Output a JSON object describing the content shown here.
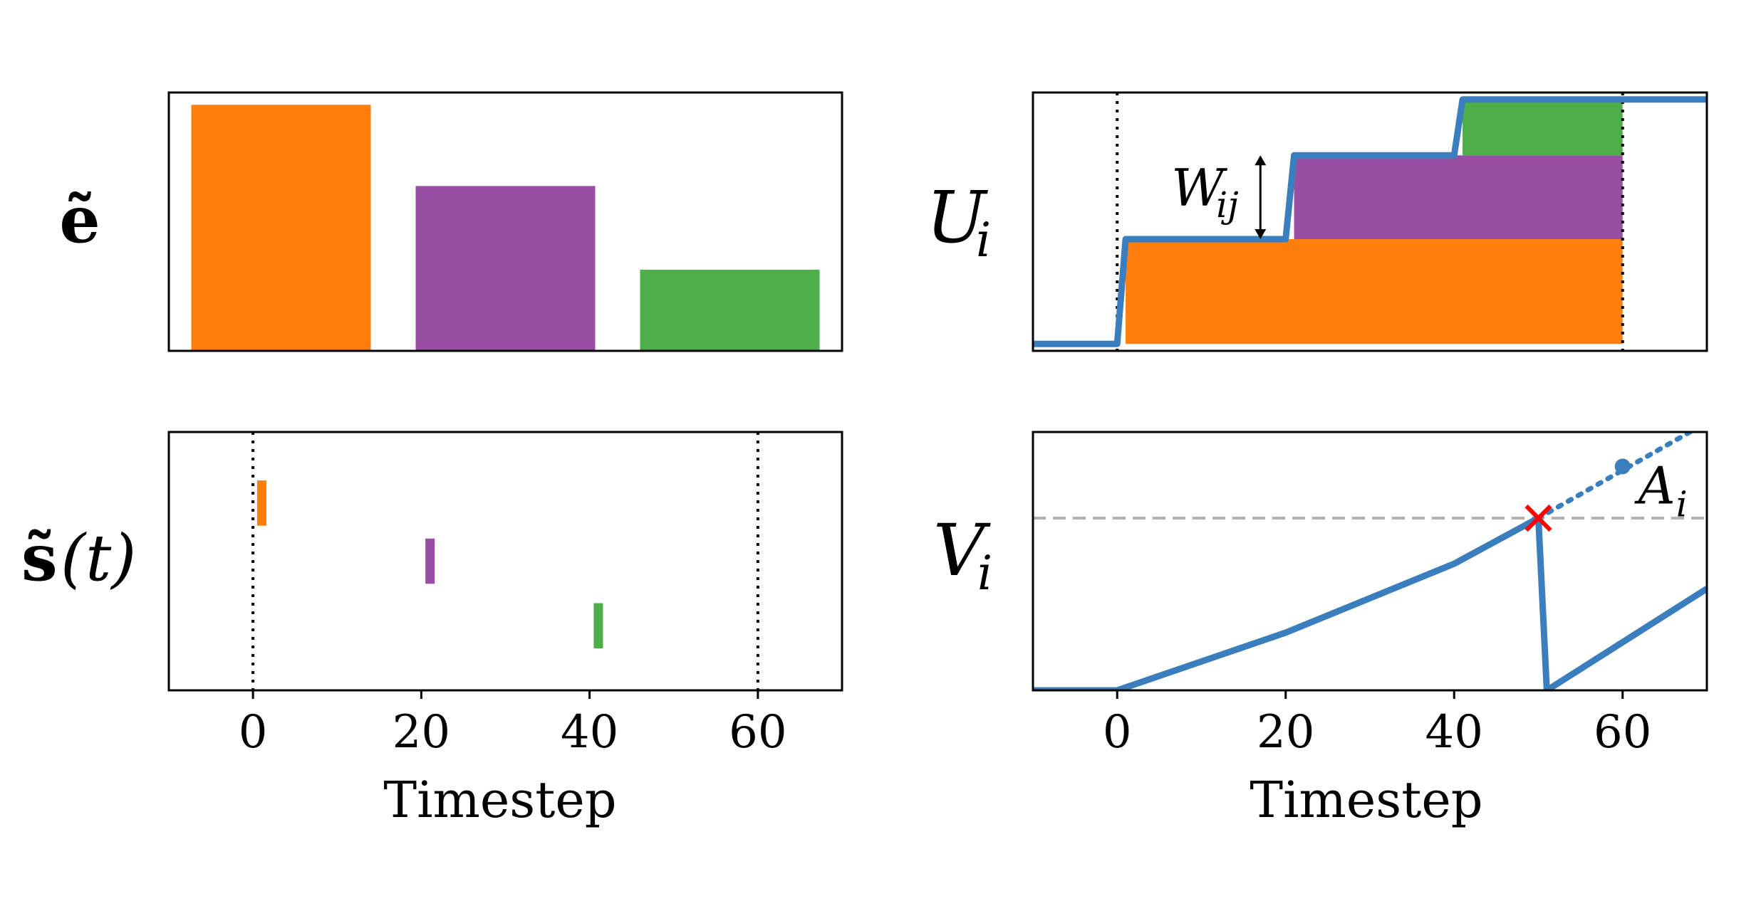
{
  "colors": {
    "orange": "#ff7f0e",
    "purple": "#984ea3",
    "green": "#4daf4a",
    "blue": "#3a7ebd",
    "threshold": "#b0b0b0",
    "red_cross": "#ff0000"
  },
  "chart_data": [
    {
      "id": "e",
      "type": "bar",
      "row_label": "ẽ",
      "categories": [
        "orange",
        "purple",
        "green"
      ],
      "values": [
        1.0,
        0.67,
        0.33
      ],
      "ylim": [
        0,
        1.05
      ],
      "xticks": false,
      "yticks": false
    },
    {
      "id": "U",
      "type": "line",
      "row_label": "U",
      "row_label_sub": "i",
      "xlim": [
        -10,
        70
      ],
      "ylim": [
        -0.1,
        3.6
      ],
      "series": [
        {
          "name": "U_i",
          "x": [
            -10,
            0,
            1,
            20,
            21,
            40,
            41,
            70
          ],
          "y": [
            0,
            0,
            1.5,
            1.5,
            2.7,
            2.7,
            3.5,
            3.5
          ]
        }
      ],
      "stacked_areas": [
        {
          "name": "orange",
          "x0": 1,
          "x1": 60,
          "y0": 0,
          "y1": 1.5
        },
        {
          "name": "purple",
          "x0": 21,
          "x1": 60,
          "y0": 1.5,
          "y1": 2.7
        },
        {
          "name": "green",
          "x0": 41,
          "x1": 60,
          "y0": 2.7,
          "y1": 3.5
        }
      ],
      "vlines": [
        0,
        60
      ],
      "annotation": {
        "text": "W",
        "sub": "ij",
        "x": 17,
        "y0": 1.5,
        "y1": 2.7
      }
    },
    {
      "id": "s",
      "type": "event",
      "row_label": "s̃",
      "row_label_suffix": "(t)",
      "xlim": [
        -10,
        70
      ],
      "ylim": [
        0,
        4
      ],
      "events": [
        {
          "name": "orange",
          "x": 1,
          "y0": 2.55,
          "y1": 3.25
        },
        {
          "name": "purple",
          "x": 21,
          "y0": 1.65,
          "y1": 2.35
        },
        {
          "name": "green",
          "x": 41,
          "y0": 0.65,
          "y1": 1.35
        }
      ],
      "vlines": [
        0,
        60
      ],
      "xticks": [
        0,
        20,
        40,
        60
      ],
      "xlabel": "Timestep"
    },
    {
      "id": "V",
      "type": "line",
      "row_label": "V",
      "row_label_sub": "i",
      "xlim": [
        -10,
        70
      ],
      "ylim": [
        0,
        3
      ],
      "threshold": 2.0,
      "series": [
        {
          "name": "V_i",
          "x": [
            -10,
            0,
            20,
            40,
            50,
            51,
            70
          ],
          "y": [
            0,
            0,
            0.67,
            1.47,
            2.0,
            0,
            1.18
          ]
        }
      ],
      "dotted_extension": {
        "x": [
          50,
          68
        ],
        "y": [
          2.0,
          3.0
        ]
      },
      "marker_point": {
        "x": 60,
        "y": 2.6
      },
      "spike_cross": {
        "x": 50,
        "y": 2.0
      },
      "annotation": {
        "text": "A",
        "sub": "i"
      },
      "xticks": [
        0,
        20,
        40,
        60
      ],
      "xlabel": "Timestep"
    }
  ]
}
